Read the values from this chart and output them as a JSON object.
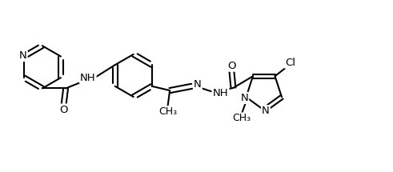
{
  "bg_color": "#ffffff",
  "line_color": "#000000",
  "line_width": 1.5,
  "font_size": 9.5,
  "figsize": [
    4.91,
    2.15
  ],
  "dpi": 100,
  "xlim": [
    -0.2,
    9.0
  ],
  "ylim": [
    -0.55,
    2.5
  ]
}
